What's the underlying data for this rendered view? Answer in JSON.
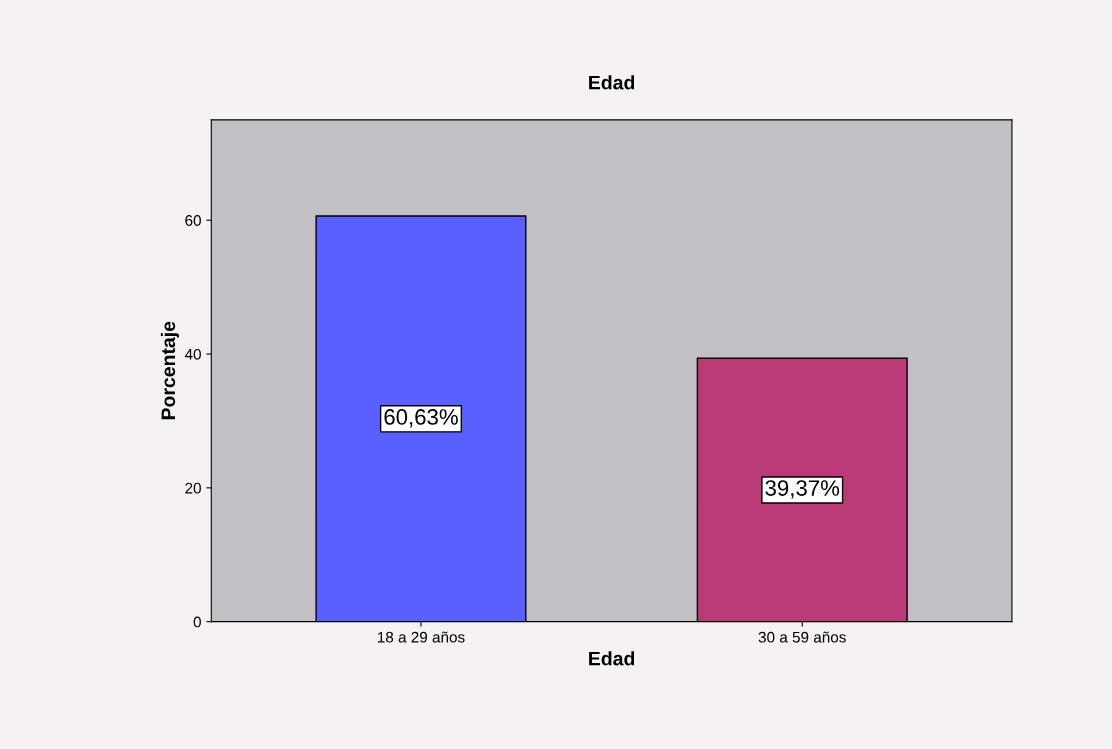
{
  "chart_data": {
    "type": "bar",
    "title": "Edad",
    "xlabel": "Edad",
    "ylabel": "Porcentaje",
    "categories": [
      "18 a 29 años",
      "30 a 59 años"
    ],
    "values": [
      60.63,
      39.37
    ],
    "colors": [
      "#5a5fff",
      "#bb3b78"
    ],
    "value_labels": [
      "60,63%",
      "39,37%"
    ],
    "ylim": [
      0,
      75
    ],
    "yticks": [
      0,
      20,
      40,
      60
    ],
    "grid": false,
    "legend": false
  }
}
